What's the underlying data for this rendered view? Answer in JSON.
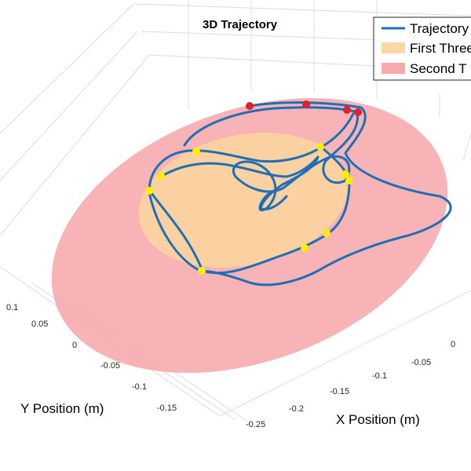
{
  "chart_data": {
    "type": "line",
    "title": "3D Trajectory",
    "xlabel": "X Position (m)",
    "ylabel": "Y Position (m)",
    "grid": true,
    "legend_placement": "top-right",
    "x_ticks": [
      "-0.25",
      "-0.2",
      "-0.15",
      "-0.1",
      "-0.05",
      "0"
    ],
    "y_ticks": [
      "-0.15",
      "-0.1",
      "-0.05",
      "0",
      "0.05",
      "0.1"
    ],
    "legend": [
      {
        "label": "Trajectory",
        "kind": "line",
        "color": "#1f6fb5"
      },
      {
        "label": "First Three",
        "kind": "patch",
        "color": "#fbd7a8"
      },
      {
        "label": "Second T",
        "kind": "patch",
        "color": "#f7a9ac"
      }
    ],
    "colors": {
      "trajectory": "#1f6fb5",
      "first_region": "#fbd3a0",
      "second_region": "#f7a6aa",
      "yellow_markers": "#ffee00",
      "red_markers": "#e0202a"
    }
  }
}
